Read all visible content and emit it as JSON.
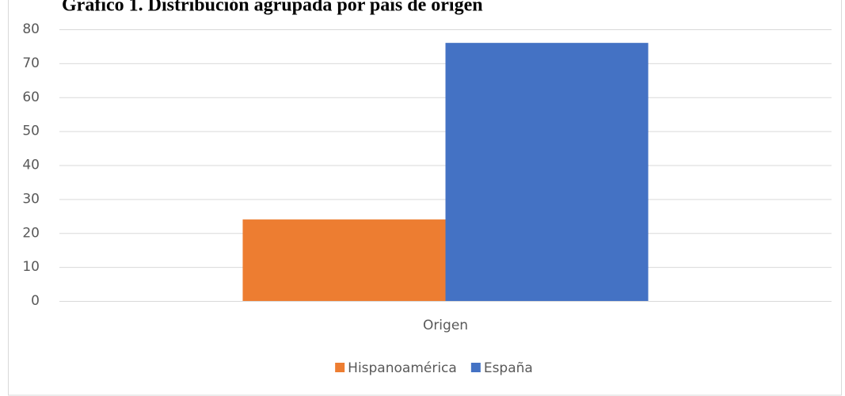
{
  "chart_data": {
    "type": "bar",
    "title": "Gráfico 1. Distribución agrupada por país de origen",
    "categories": [
      "Origen"
    ],
    "series": [
      {
        "name": "Hispanoamérica",
        "color": "#ed7d31",
        "values": [
          24
        ]
      },
      {
        "name": "España",
        "color": "#4472c4",
        "values": [
          76
        ]
      }
    ],
    "ylim": [
      0,
      80
    ],
    "yticks": [
      0,
      10,
      20,
      30,
      40,
      50,
      60,
      70,
      80
    ],
    "grid": true,
    "legend": "bottom"
  }
}
